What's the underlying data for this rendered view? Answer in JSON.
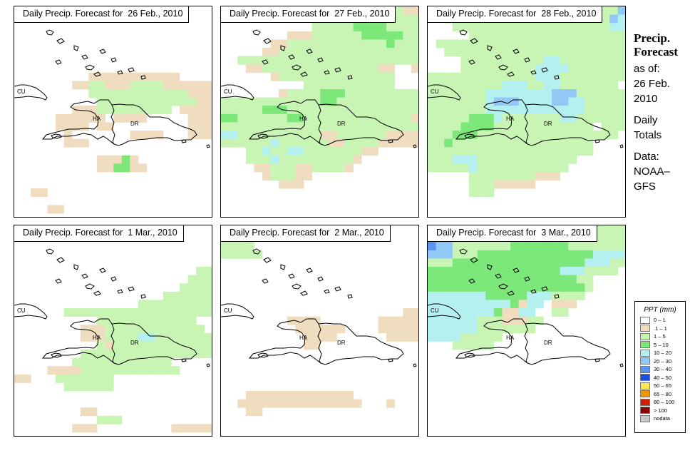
{
  "panels": [
    {
      "title": "Daily Precip. Forecast for  26 Feb., 2010"
    },
    {
      "title": "Daily Precip. Forecast for  27 Feb., 2010"
    },
    {
      "title": "Daily Precip. Forecast for  28 Feb., 2010"
    },
    {
      "title": "Daily Precip. Forecast for  1 Mar., 2010"
    },
    {
      "title": "Daily Precip. Forecast for  2 Mar., 2010"
    },
    {
      "title": "Daily Precip. Forecast for  3 Mar., 2010"
    }
  ],
  "map_labels": {
    "cuba": "CU",
    "haiti": "HA",
    "dominican_republic": "DR"
  },
  "sidebar": {
    "title1": "Precip.",
    "title2": "Forecast",
    "asof": "as of:",
    "date1": "26 Feb.",
    "date2": "2010",
    "daily": "Daily",
    "totals": "Totals",
    "data": "Data:",
    "source1": "NOAA–",
    "source2": "GFS"
  },
  "legend": {
    "title": "PPT (mm)",
    "items": [
      {
        "label": "0 – 1",
        "color": "#ffffff"
      },
      {
        "label": ".1 – 1",
        "color": "#f0dcbe"
      },
      {
        "label": "1 – 5",
        "color": "#c8f5b4"
      },
      {
        "label": "5 – 10",
        "color": "#7de87a"
      },
      {
        "label": "10 – 20",
        "color": "#b4f0f0"
      },
      {
        "label": "20 – 30",
        "color": "#91c8f5"
      },
      {
        "label": "30 – 40",
        "color": "#5a96f0"
      },
      {
        "label": "40 – 50",
        "color": "#1e50dc"
      },
      {
        "label": "50 – 65",
        "color": "#ffe650"
      },
      {
        "label": "65 – 80",
        "color": "#f09600"
      },
      {
        "label": "80 – 100",
        "color": "#d21e00"
      },
      {
        "label": "> 100",
        "color": "#8c0000"
      },
      {
        "label": "nodata",
        "color": "#c8c8c8"
      }
    ]
  }
}
